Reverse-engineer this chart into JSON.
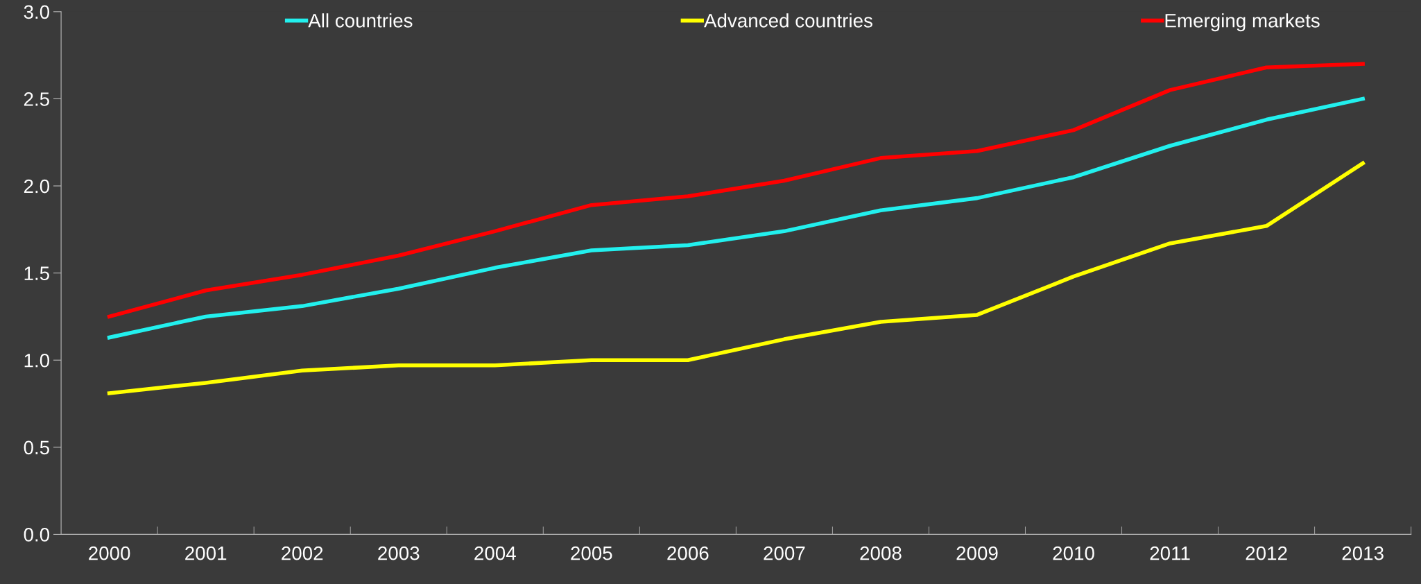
{
  "chart_data": {
    "type": "line",
    "categories": [
      "2000",
      "2001",
      "2002",
      "2003",
      "2004",
      "2005",
      "2006",
      "2007",
      "2008",
      "2009",
      "2010",
      "2011",
      "2012",
      "2013"
    ],
    "series": [
      {
        "name": "All countries",
        "color": "#22f0ee",
        "values": [
          1.13,
          1.25,
          1.31,
          1.41,
          1.53,
          1.63,
          1.66,
          1.74,
          1.86,
          1.93,
          2.05,
          2.23,
          2.38,
          2.5
        ]
      },
      {
        "name": "Advanced countries",
        "color": "#ffff00",
        "values": [
          0.81,
          0.87,
          0.94,
          0.97,
          0.97,
          1.0,
          1.0,
          1.12,
          1.22,
          1.26,
          1.48,
          1.67,
          1.77,
          2.13
        ]
      },
      {
        "name": "Emerging markets",
        "color": "#ff0000",
        "values": [
          1.25,
          1.4,
          1.49,
          1.6,
          1.74,
          1.89,
          1.94,
          2.03,
          2.16,
          2.2,
          2.32,
          2.55,
          2.68,
          2.7
        ]
      }
    ],
    "ylim": [
      0,
      3.0
    ],
    "yticks": [
      {
        "value": 0,
        "label": "0.0"
      },
      {
        "value": 0.5,
        "label": "0.5"
      },
      {
        "value": 1,
        "label": "1.0"
      },
      {
        "value": 1.5,
        "label": "1.5"
      },
      {
        "value": 2,
        "label": "2.0"
      },
      {
        "value": 2.5,
        "label": "2.5"
      },
      {
        "value": 3,
        "label": "3.0"
      }
    ],
    "grid": false,
    "legend": "top",
    "marker": "none",
    "line_style": "solid"
  }
}
